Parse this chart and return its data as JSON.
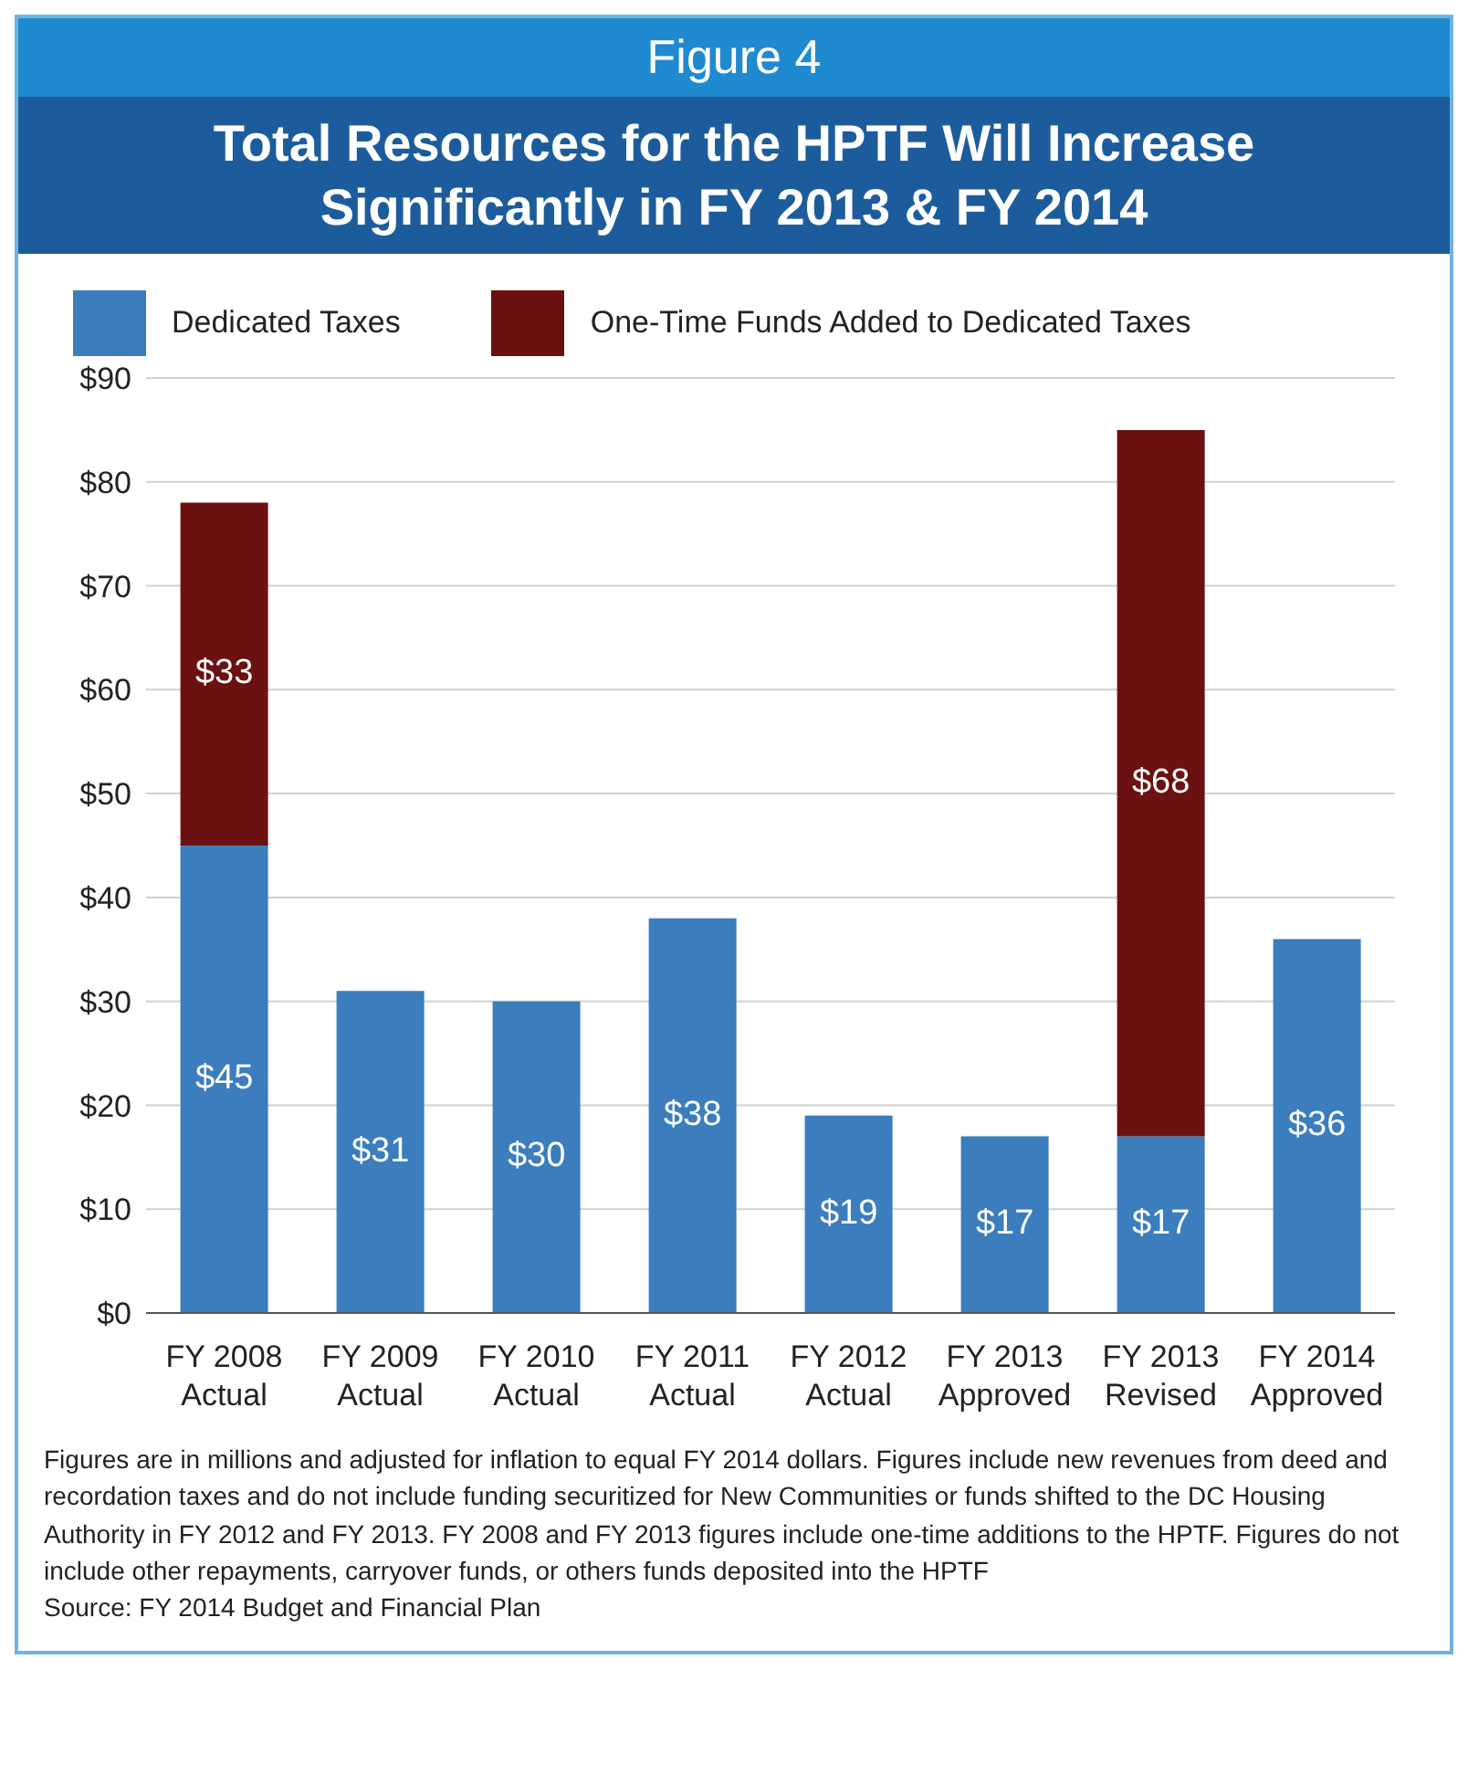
{
  "chart_data": {
    "type": "bar",
    "title": "Figure 4",
    "subtitle": "Total Resources for the HPTF Will Increase Significantly in FY 2013 & FY 2014",
    "categories": [
      "FY 2008\nActual",
      "FY 2009\nActual",
      "FY 2010\nActual",
      "FY 2011\nActual",
      "FY 2012\nActual",
      "FY 2013\nApproved",
      "FY 2013\nRevised",
      "FY 2014\nApproved"
    ],
    "series": [
      {
        "name": "Dedicated Taxes",
        "color": "#3b7dbd",
        "values": [
          45,
          31,
          30,
          38,
          19,
          17,
          17,
          36
        ],
        "value_labels": [
          "$45",
          "$31",
          "$30",
          "$38",
          "$19",
          "$17",
          "$17",
          "$36"
        ]
      },
      {
        "name": "One-Time Funds Added to Dedicated Taxes",
        "color": "#6b1111",
        "values": [
          33,
          0,
          0,
          0,
          0,
          0,
          68,
          0
        ],
        "value_labels": [
          "$33",
          null,
          null,
          null,
          null,
          null,
          "$68",
          null
        ]
      }
    ],
    "stacked": true,
    "ylim": [
      0,
      90
    ],
    "yticks": [
      {
        "value": 0,
        "label": "$0"
      },
      {
        "value": 10,
        "label": "$10"
      },
      {
        "value": 20,
        "label": "$20"
      },
      {
        "value": 30,
        "label": "$30"
      },
      {
        "value": 40,
        "label": "$40"
      },
      {
        "value": 50,
        "label": "$50"
      },
      {
        "value": 60,
        "label": "$60"
      },
      {
        "value": 70,
        "label": "$70"
      },
      {
        "value": 80,
        "label": "$80"
      },
      {
        "value": 90,
        "label": "$90"
      }
    ],
    "grid": "y",
    "legend": "top",
    "annotations": [
      "Figures are in millions and adjusted for inflation to equal FY 2014 dollars.  Figures include new revenues from deed and recordation taxes and do not include funding securitized for New Communities or funds shifted to the DC Housing Authority in FY 2012 and FY 2013.  FY 2008 and FY 2013 figures include one-time additions to the HPTF. Figures do not include other repayments, carryover funds, or others funds deposited into the HPTF",
      "Source: FY 2014 Budget and Financial Plan"
    ]
  }
}
